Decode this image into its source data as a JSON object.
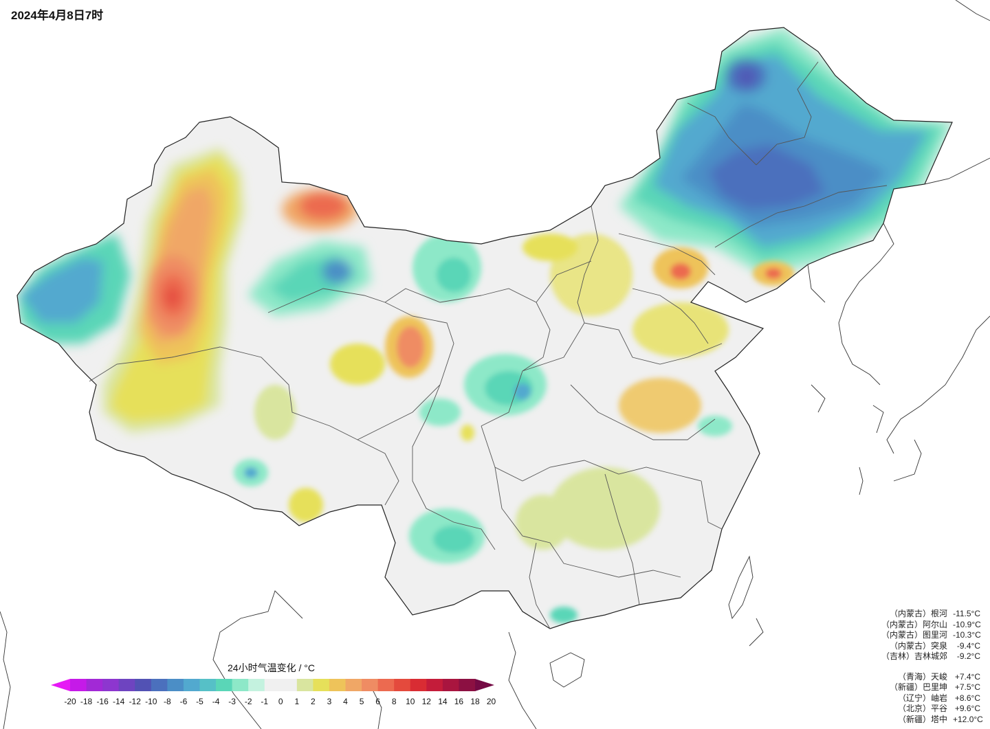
{
  "title": "2024年4月8日7时",
  "legend": {
    "title": "24小时气温变化 / °C",
    "ticks": [
      "-20",
      "-18",
      "-16",
      "-14",
      "-12",
      "-10",
      "-8",
      "-6",
      "-5",
      "-4",
      "-3",
      "-2",
      "-1",
      "0",
      "1",
      "2",
      "3",
      "4",
      "5",
      "6",
      "8",
      "10",
      "12",
      "14",
      "16",
      "18",
      "20"
    ],
    "colors": [
      "#e619f5",
      "#c51ae8",
      "#a229d6",
      "#8d36cf",
      "#6e44c0",
      "#5252b4",
      "#4b70bd",
      "#4b8ec6",
      "#52a9cf",
      "#56c0c7",
      "#5ad6b7",
      "#8de8c8",
      "#c4f2df",
      "#f0f0f0",
      "#f0f0f0",
      "#d9e59f",
      "#e6e05a",
      "#eec35a",
      "#f0a766",
      "#ef8c63",
      "#ec6a50",
      "#e44a3d",
      "#d92c33",
      "#c41c3a",
      "#a9153f",
      "#8c1042",
      "#740a44"
    ]
  },
  "stations": {
    "cold": [
      {
        "name": "（内蒙古）根河",
        "value": "-11.5°C"
      },
      {
        "name": "（内蒙古）阿尔山",
        "value": "-10.9°C"
      },
      {
        "name": "（内蒙古）图里河",
        "value": "-10.3°C"
      },
      {
        "name": "（内蒙古）突泉",
        "value": "-9.4°C"
      },
      {
        "name": "（吉林）吉林城郊",
        "value": "-9.2°C"
      }
    ],
    "warm": [
      {
        "name": "（青海）天峻",
        "value": "+7.4°C"
      },
      {
        "name": "（新疆）巴里坤",
        "value": "+7.5°C"
      },
      {
        "name": "（辽宁）岫岩",
        "value": "+8.6°C"
      },
      {
        "name": "（北京）平谷",
        "value": "+9.6°C"
      },
      {
        "name": "（新疆）塔中",
        "value": "+12.0°C"
      }
    ]
  }
}
